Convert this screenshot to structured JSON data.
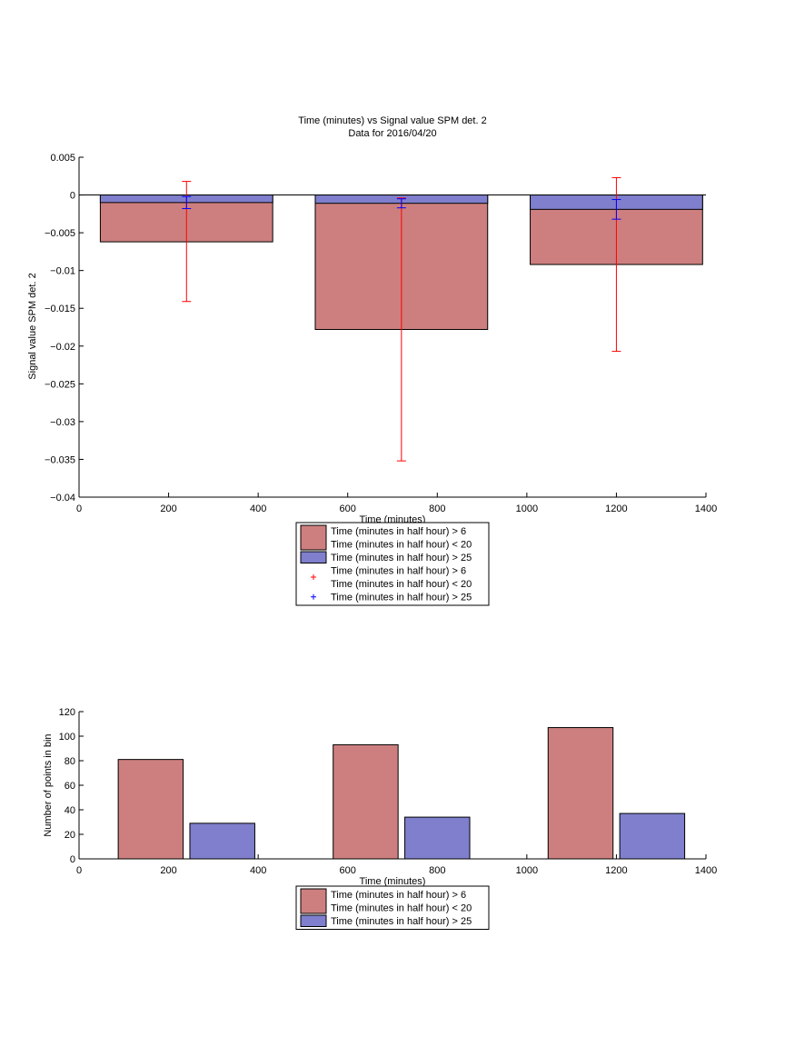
{
  "chart_data": [
    {
      "type": "bar",
      "title": "Time (minutes) vs Signal value SPM det. 2",
      "subtitle": "Data for 2016/04/20",
      "xlabel": "Time (minutes)",
      "ylabel": "Signal value SPM det. 2",
      "xlim": [
        0,
        1400
      ],
      "ylim": [
        -0.04,
        0.005
      ],
      "xticks": [
        0,
        200,
        400,
        600,
        800,
        1000,
        1200,
        1400
      ],
      "yticks": [
        0.005,
        0,
        -0.005,
        -0.01,
        -0.015,
        -0.02,
        -0.025,
        -0.03,
        -0.035,
        -0.04
      ],
      "xtick_labels": [
        "0",
        "200",
        "400",
        "600",
        "800",
        "1000",
        "1200",
        "1400"
      ],
      "ytick_labels": [
        "0.005",
        "0",
        "−0.005",
        "−0.01",
        "−0.015",
        "−0.02",
        "−0.025",
        "−0.03",
        "−0.035",
        "−0.04"
      ],
      "bar_centers": [
        240,
        720,
        1200
      ],
      "bar_width": 385,
      "series": [
        {
          "name": "Time (minutes in half hour) > 6\nTime (minutes in half hour) < 20",
          "color": "#cd7f7f",
          "values": [
            -0.0062,
            -0.0178,
            -0.0092
          ]
        },
        {
          "name": "Time (minutes in half hour) > 25",
          "color": "#7f7fcd",
          "values": [
            -0.001,
            -0.0011,
            -0.0019
          ]
        }
      ],
      "error_bars": [
        {
          "series": 0,
          "color": "#ff0000",
          "x": [
            240,
            720,
            1200
          ],
          "y": [
            -0.0062,
            -0.0178,
            -0.0092
          ],
          "low": [
            -0.0141,
            -0.0352,
            -0.0207
          ],
          "high": [
            0.0018,
            -0.0004,
            0.0023
          ]
        },
        {
          "series": 1,
          "color": "#0000ff",
          "x": [
            240,
            720,
            1200
          ],
          "y": [
            -0.001,
            -0.0011,
            -0.0019
          ],
          "low": [
            -0.0018,
            -0.0017,
            -0.0032
          ],
          "high": [
            -0.0002,
            -0.0005,
            -0.0006
          ]
        }
      ],
      "legend": {
        "placement": "below",
        "entries": [
          {
            "kind": "patch",
            "color": "#cd7f7f",
            "lines": [
              "Time (minutes in half hour) > 6",
              "Time (minutes in half hour) < 20"
            ]
          },
          {
            "kind": "patch",
            "color": "#7f7fcd",
            "lines": [
              "Time (minutes in half hour) > 25"
            ]
          },
          {
            "kind": "marker",
            "color": "#ff0000",
            "lines": [
              "Time (minutes in half hour) > 6",
              "Time (minutes in half hour) < 20"
            ]
          },
          {
            "kind": "marker",
            "color": "#0000ff",
            "lines": [
              "Time (minutes in half hour) > 25"
            ]
          }
        ]
      },
      "grid": false
    },
    {
      "type": "bar",
      "xlabel": "Time (minutes)",
      "ylabel": "Number of points in bin",
      "xlim": [
        0,
        1400
      ],
      "ylim": [
        0,
        120
      ],
      "xticks": [
        0,
        200,
        400,
        600,
        800,
        1000,
        1200,
        1400
      ],
      "yticks": [
        0,
        20,
        40,
        60,
        80,
        100,
        120
      ],
      "xtick_labels": [
        "0",
        "200",
        "400",
        "600",
        "800",
        "1000",
        "1200",
        "1400"
      ],
      "ytick_labels": [
        "0",
        "20",
        "40",
        "60",
        "80",
        "100",
        "120"
      ],
      "bar_width": 145,
      "series": [
        {
          "name": "Time (minutes in half hour) > 6\nTime (minutes in half hour) < 20",
          "color": "#cd7f7f",
          "x": [
            160,
            640,
            1120
          ],
          "values": [
            81,
            93,
            107
          ]
        },
        {
          "name": "Time (minutes in half hour) > 25",
          "color": "#7f7fcd",
          "x": [
            320,
            800,
            1280
          ],
          "values": [
            29,
            34,
            37
          ]
        }
      ],
      "legend": {
        "placement": "below",
        "entries": [
          {
            "kind": "patch",
            "color": "#cd7f7f",
            "lines": [
              "Time (minutes in half hour) > 6",
              "Time (minutes in half hour) < 20"
            ]
          },
          {
            "kind": "patch",
            "color": "#7f7fcd",
            "lines": [
              "Time (minutes in half hour) > 25"
            ]
          }
        ]
      },
      "grid": false
    }
  ]
}
